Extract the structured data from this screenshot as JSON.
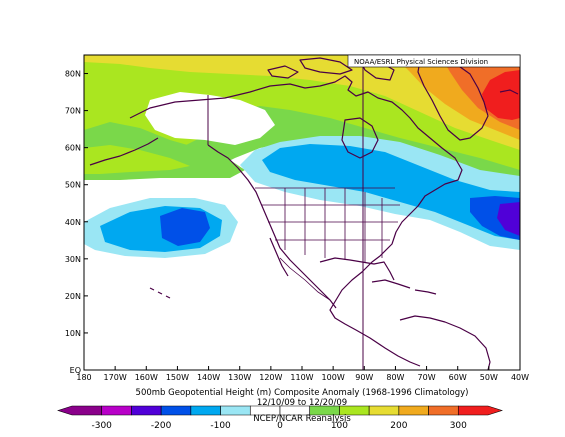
{
  "credit": "NOAA/ESRL Physical Sciences Division",
  "title": {
    "line1": "500mb Geopotential Height (m) Composite Anomaly (1968-1996 Climatology)",
    "line2": "12/10/09 to 12/20/09",
    "line3": "NCEP/NCAR Reanalysis"
  },
  "axes": {
    "lat_labels": [
      "EQ",
      "10N",
      "20N",
      "30N",
      "40N",
      "50N",
      "60N",
      "70N",
      "80N"
    ],
    "lon_labels": [
      "180",
      "170W",
      "160W",
      "150W",
      "140W",
      "130W",
      "120W",
      "110W",
      "100W",
      "90W",
      "80W",
      "70W",
      "60W",
      "50W",
      "40W"
    ],
    "lat_range": [
      0,
      85
    ],
    "lon_range": [
      -180,
      -40
    ]
  },
  "colorbar": {
    "labels": [
      "-300",
      "-200",
      "-100",
      "0",
      "100",
      "200",
      "300"
    ],
    "colors": [
      "#8a008a",
      "#b800c8",
      "#5000d8",
      "#0050e8",
      "#00a8f0",
      "#9ae6f4",
      "#ffffff",
      "#ffffff",
      "#7ad84a",
      "#aae620",
      "#e6dc32",
      "#f0aa1e",
      "#f06e28",
      "#f01e1e"
    ]
  },
  "map_colors": {
    "land_outline": "#4a0046",
    "grid_line": "#4a0046"
  }
}
